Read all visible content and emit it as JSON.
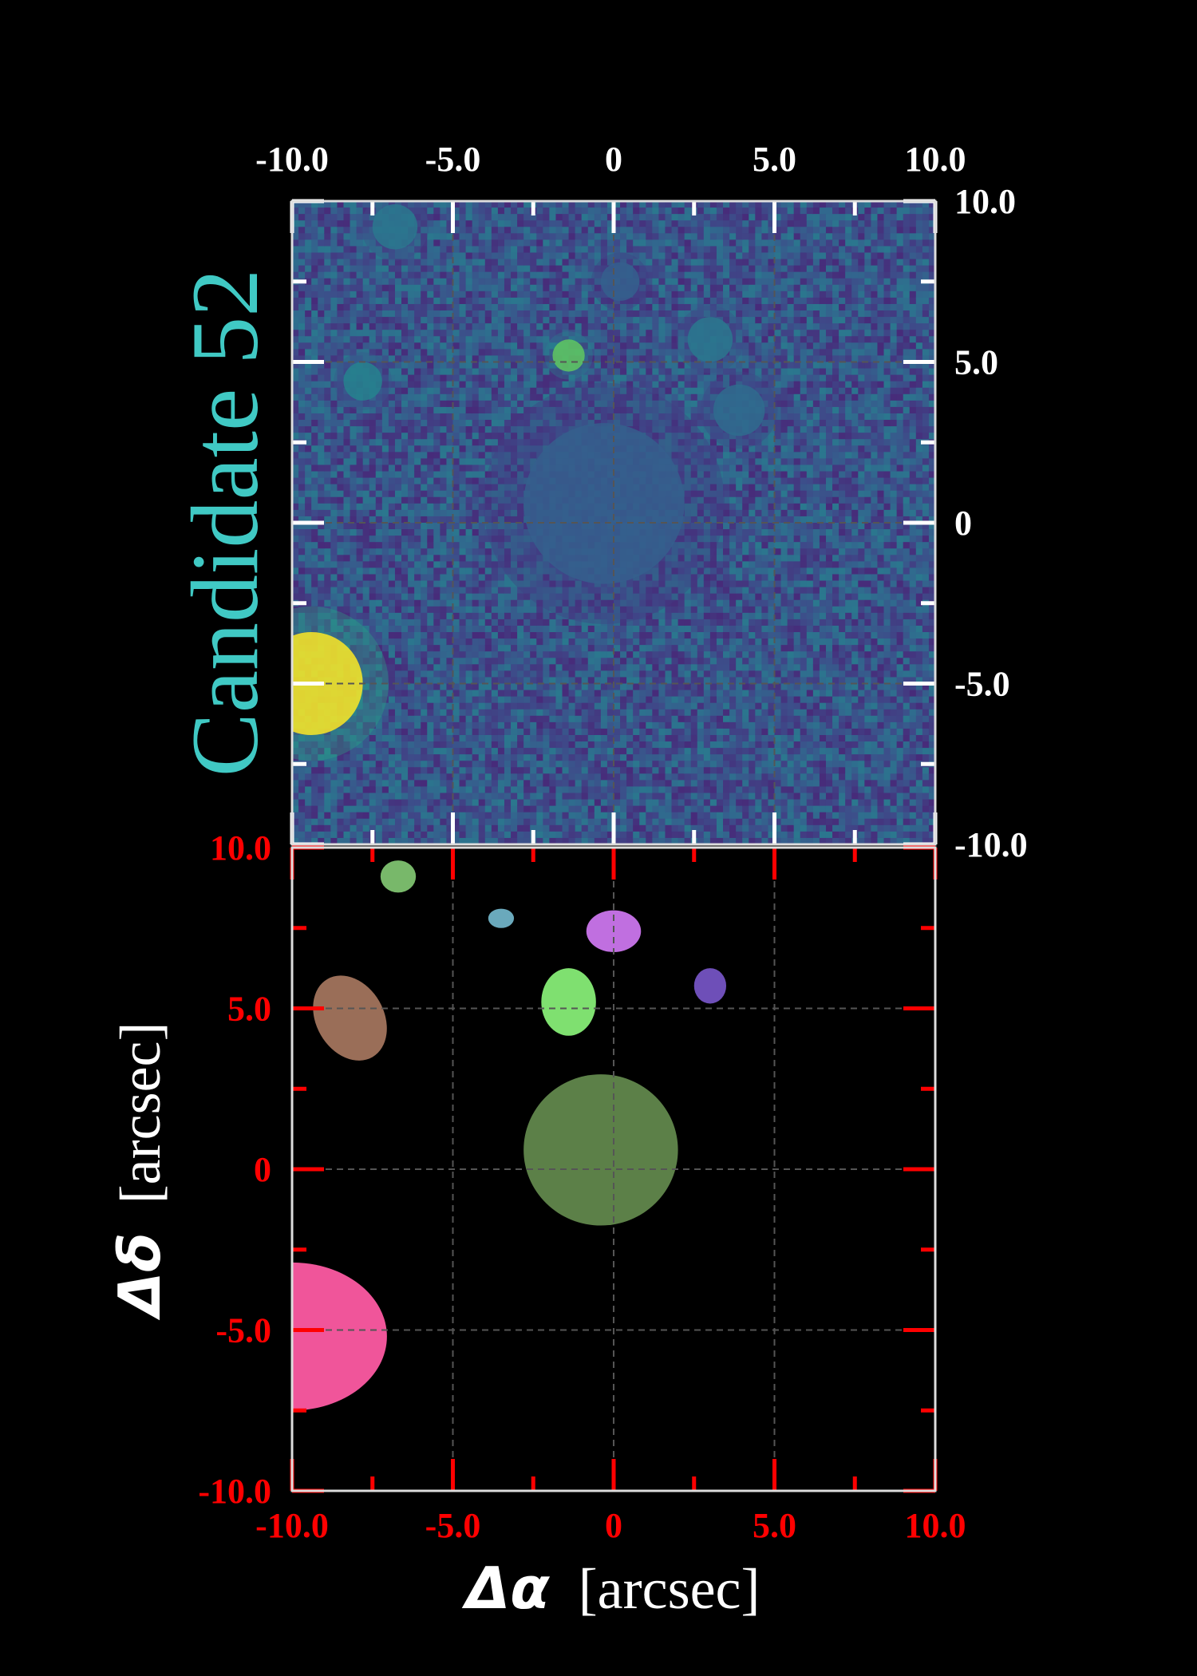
{
  "title": "Candidate 52",
  "colors": {
    "background": "#000000",
    "title": "#40c9c4",
    "top_tick_color": "#ffffff",
    "bottom_tick_color": "#ff0000",
    "frame": "#dddddd",
    "grid": "#555555"
  },
  "chart_data": [
    {
      "type": "heatmap",
      "panel": "top",
      "colormap": "viridis",
      "xlim": [
        -10.0,
        10.0
      ],
      "ylim": [
        -10.0,
        10.0
      ],
      "x_ticks": [
        "-10.0",
        "-5.0",
        "0",
        "5.0",
        "10.0"
      ],
      "y_ticks": [
        "10.0",
        "5.0",
        "0",
        "-5.0",
        "-10.0"
      ],
      "x_tick_position": "top",
      "y_tick_position": "right",
      "grid": true,
      "sources": [
        {
          "x": -9.4,
          "y": -5.0,
          "intensity": 1.0,
          "size": 1.6
        },
        {
          "x": -1.4,
          "y": 5.2,
          "intensity": 0.75,
          "size": 0.5
        },
        {
          "x": -7.8,
          "y": 4.4,
          "intensity": 0.45,
          "size": 0.6
        },
        {
          "x": -6.8,
          "y": 9.2,
          "intensity": 0.4,
          "size": 0.7
        },
        {
          "x": 3.0,
          "y": 5.7,
          "intensity": 0.4,
          "size": 0.7
        },
        {
          "x": 3.9,
          "y": 3.5,
          "intensity": 0.35,
          "size": 0.8
        },
        {
          "x": -0.3,
          "y": 0.6,
          "intensity": 0.3,
          "size": 2.5
        },
        {
          "x": 0.2,
          "y": 7.5,
          "intensity": 0.3,
          "size": 0.6
        }
      ]
    },
    {
      "type": "segmentation_map",
      "panel": "bottom",
      "xlim": [
        -10.0,
        10.0
      ],
      "ylim": [
        -10.0,
        10.0
      ],
      "x_ticks": [
        "-10.0",
        "-5.0",
        "0",
        "5.0",
        "10.0"
      ],
      "y_ticks": [
        "10.0",
        "5.0",
        "0",
        "-5.0",
        "-10.0"
      ],
      "xlabel_symbol": "Δα",
      "xlabel_unit": "[arcsec]",
      "ylabel_symbol": "Δδ",
      "ylabel_unit": "[arcsec]",
      "grid": true,
      "segments": [
        {
          "x": -6.7,
          "y": 9.1,
          "rx": 0.55,
          "ry": 0.5,
          "color": "#78b86a"
        },
        {
          "x": -3.5,
          "y": 7.8,
          "rx": 0.4,
          "ry": 0.3,
          "color": "#6aa9bc"
        },
        {
          "x": 0.0,
          "y": 7.4,
          "rx": 0.85,
          "ry": 0.65,
          "color": "#c06fe0"
        },
        {
          "x": 3.0,
          "y": 5.7,
          "rx": 0.5,
          "ry": 0.55,
          "color": "#6e4fb8"
        },
        {
          "x": -1.4,
          "y": 5.2,
          "rx": 0.85,
          "ry": 1.05,
          "color": "#7fe070"
        },
        {
          "x": -8.2,
          "y": 4.7,
          "rx": 1.05,
          "ry": 1.4,
          "color": "#9a6e58",
          "rotate": -30
        },
        {
          "x": -0.4,
          "y": 0.6,
          "rx": 2.4,
          "ry": 2.35,
          "color": "#5c8048"
        },
        {
          "x": -10.0,
          "y": -5.2,
          "rx": 2.95,
          "ry": 2.3,
          "color": "#f0559a"
        }
      ]
    }
  ]
}
